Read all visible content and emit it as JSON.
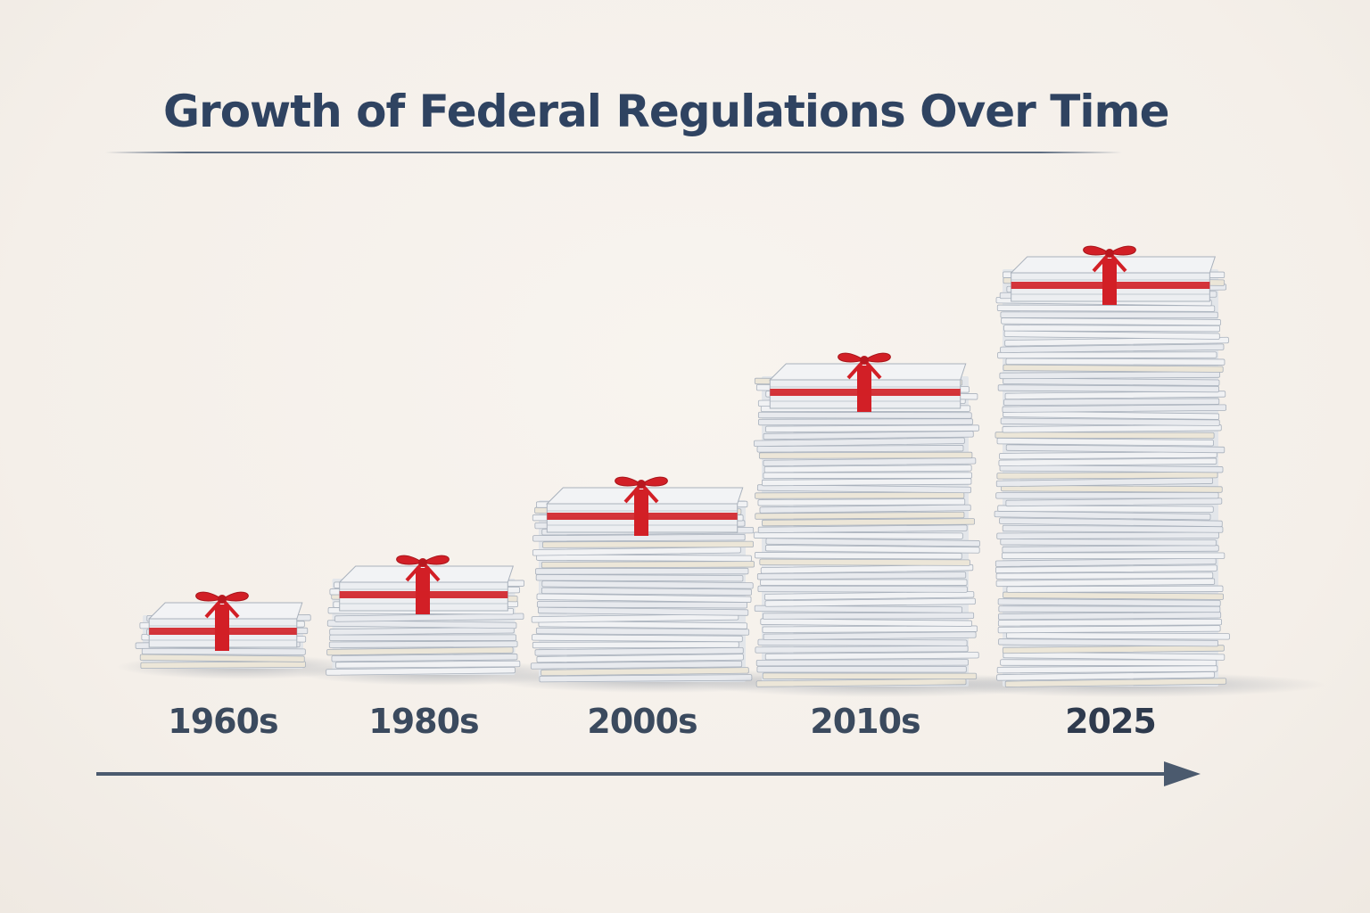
{
  "title": "Growth of Federal Regulations Over Time",
  "colors": {
    "title": "#2f4361",
    "ribbon": "#d21f26",
    "paper": "#eef0f2",
    "arrow": "#4b5a6e"
  },
  "chart_data": {
    "type": "bar",
    "title": "Growth of Federal Regulations Over Time",
    "categories": [
      "1960s",
      "1980s",
      "2000s",
      "2010s",
      "2025"
    ],
    "values": [
      1,
      2,
      4,
      7,
      9.5
    ],
    "units": "relative stack height",
    "mark": "paper-stack-with-red-ribbon"
  }
}
